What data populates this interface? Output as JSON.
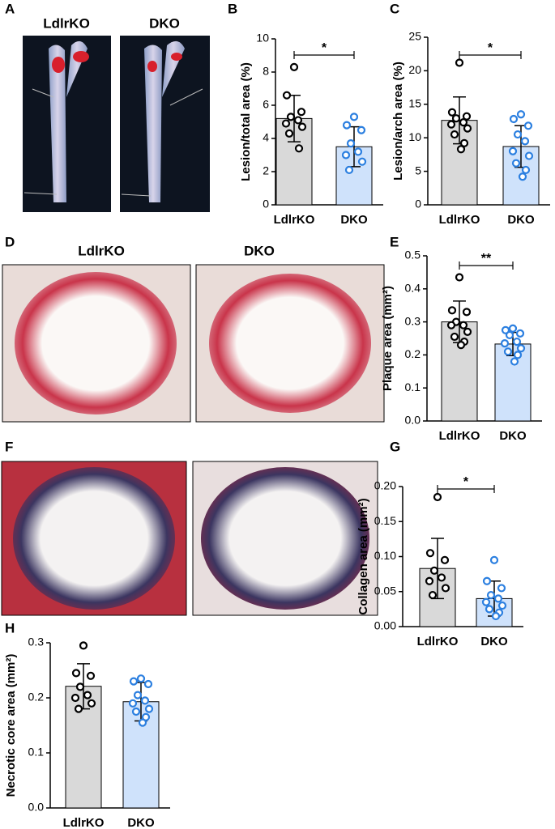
{
  "images": [
    {
      "panel": "A",
      "labels": [
        "LdlrKO",
        "DKO"
      ]
    },
    {
      "panel": "D",
      "labels": [
        "LdlrKO",
        "DKO"
      ]
    },
    {
      "panel": "F"
    }
  ],
  "chart_data": [
    {
      "type": "bar",
      "panel": "B",
      "ylabel": "Lesion/total area (%)",
      "categories": [
        "LdlrKO",
        "DKO"
      ],
      "values": [
        5.2,
        3.5
      ],
      "errors": [
        1.4,
        1.2
      ],
      "bar_colors": [
        "#d9d9d9",
        "#cfe2fb"
      ],
      "point_colors": [
        "#000000",
        "#2b7fe0"
      ],
      "points": [
        [
          8.3,
          6.6,
          5.6,
          5.3,
          5.1,
          4.9,
          4.7,
          4.3,
          3.4
        ],
        [
          5.3,
          4.8,
          4.5,
          3.7,
          3.2,
          3.0,
          2.6,
          2.1
        ]
      ],
      "significance": "*",
      "ylim": [
        0,
        10
      ],
      "yticks": [
        0,
        2,
        4,
        6,
        8,
        10
      ]
    },
    {
      "type": "bar",
      "panel": "C",
      "ylabel": "Lesion/arch area (%)",
      "categories": [
        "LdlrKO",
        "DKO"
      ],
      "values": [
        12.6,
        8.7
      ],
      "errors": [
        3.5,
        3.1
      ],
      "bar_colors": [
        "#d9d9d9",
        "#cfe2fb"
      ],
      "point_colors": [
        "#000000",
        "#2b7fe0"
      ],
      "points": [
        [
          21.2,
          13.8,
          13.2,
          12.9,
          12.3,
          12.0,
          11.4,
          10.5,
          9.2,
          8.3
        ],
        [
          13.5,
          12.8,
          11.8,
          10.5,
          9.5,
          8.0,
          7.3,
          6.2,
          5.2,
          4.2
        ]
      ],
      "significance": "*",
      "ylim": [
        0,
        25
      ],
      "yticks": [
        0,
        5,
        10,
        15,
        20,
        25
      ]
    },
    {
      "type": "bar",
      "panel": "E",
      "ylabel": "Plaque area (mm²)",
      "categories": [
        "LdlrKO",
        "DKO"
      ],
      "values": [
        0.3,
        0.233
      ],
      "errors": [
        0.063,
        0.035
      ],
      "bar_colors": [
        "#d9d9d9",
        "#cfe2fb"
      ],
      "point_colors": [
        "#000000",
        "#2b7fe0"
      ],
      "points": [
        [
          0.435,
          0.335,
          0.33,
          0.3,
          0.29,
          0.29,
          0.27,
          0.255,
          0.24,
          0.23
        ],
        [
          0.28,
          0.275,
          0.265,
          0.26,
          0.24,
          0.235,
          0.22,
          0.21,
          0.2,
          0.18
        ]
      ],
      "significance": "**",
      "ylim": [
        0,
        0.5
      ],
      "yticks": [
        {
          "value": 0,
          "label": "0.0"
        },
        0.1,
        0.2,
        0.3,
        0.4,
        0.5
      ]
    },
    {
      "type": "bar",
      "panel": "G",
      "ylabel": "Collagen area (mm²)",
      "categories": [
        "LdlrKO",
        "DKO"
      ],
      "values": [
        0.083,
        0.04
      ],
      "errors": [
        0.043,
        0.025
      ],
      "bar_colors": [
        "#d9d9d9",
        "#cfe2fb"
      ],
      "point_colors": [
        "#000000",
        "#2b7fe0"
      ],
      "points": [
        [
          0.185,
          0.105,
          0.095,
          0.08,
          0.07,
          0.065,
          0.055,
          0.045
        ],
        [
          0.095,
          0.065,
          0.055,
          0.045,
          0.04,
          0.035,
          0.03,
          0.025,
          0.02,
          0.015
        ]
      ],
      "significance": "*",
      "ylim": [
        0,
        0.2
      ],
      "yticks": [
        {
          "value": 0,
          "label": "0.00"
        },
        0.05,
        {
          "value": 0.1,
          "label": "0.10"
        },
        0.15,
        {
          "value": 0.2,
          "label": "0.20"
        }
      ]
    },
    {
      "type": "bar",
      "panel": "H",
      "ylabel": "Necrotic core area (mm²)",
      "categories": [
        "LdlrKO",
        "DKO"
      ],
      "values": [
        0.221,
        0.193
      ],
      "errors": [
        0.041,
        0.035
      ],
      "bar_colors": [
        "#d9d9d9",
        "#cfe2fb"
      ],
      "point_colors": [
        "#000000",
        "#2b7fe0"
      ],
      "points": [
        [
          0.295,
          0.245,
          0.24,
          0.22,
          0.205,
          0.2,
          0.19,
          0.18
        ],
        [
          0.235,
          0.23,
          0.225,
          0.205,
          0.195,
          0.19,
          0.18,
          0.175,
          0.165,
          0.155
        ]
      ],
      "ylim": [
        0,
        0.3
      ],
      "yticks": [
        {
          "value": 0,
          "label": "0.0"
        },
        0.1,
        0.2,
        0.3
      ]
    }
  ]
}
